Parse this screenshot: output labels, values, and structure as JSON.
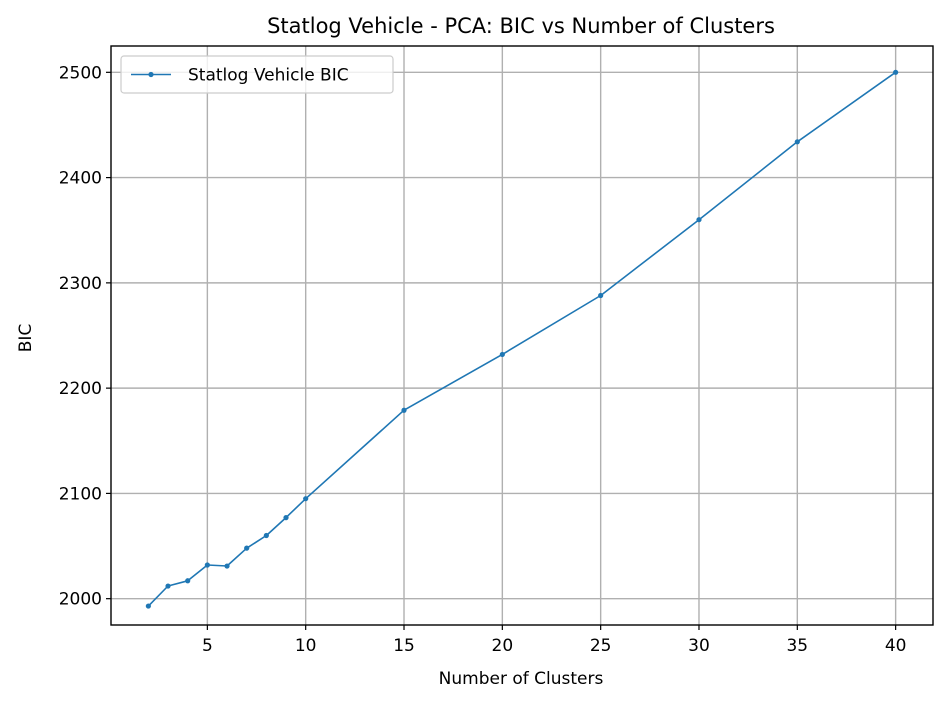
{
  "chart_data": {
    "type": "line",
    "title": "Statlog Vehicle - PCA: BIC vs Number of Clusters",
    "xlabel": "Number of Clusters",
    "ylabel": "BIC",
    "xlim": [
      0.1,
      41.9
    ],
    "ylim": [
      1975,
      2525
    ],
    "xticks": [
      5,
      10,
      15,
      20,
      25,
      30,
      35,
      40
    ],
    "yticks": [
      2000,
      2100,
      2200,
      2300,
      2400,
      2500
    ],
    "grid": true,
    "legend_position": "upper-left",
    "series": [
      {
        "name": "Statlog Vehicle BIC",
        "color": "#1f77b4",
        "x": [
          2,
          3,
          4,
          5,
          6,
          7,
          8,
          9,
          10,
          15,
          20,
          25,
          30,
          35,
          40
        ],
        "y": [
          1993,
          2012,
          2017,
          2032,
          2031,
          2048,
          2060,
          2077,
          2095,
          2179,
          2232,
          2288,
          2360,
          2434,
          2500
        ]
      }
    ]
  }
}
